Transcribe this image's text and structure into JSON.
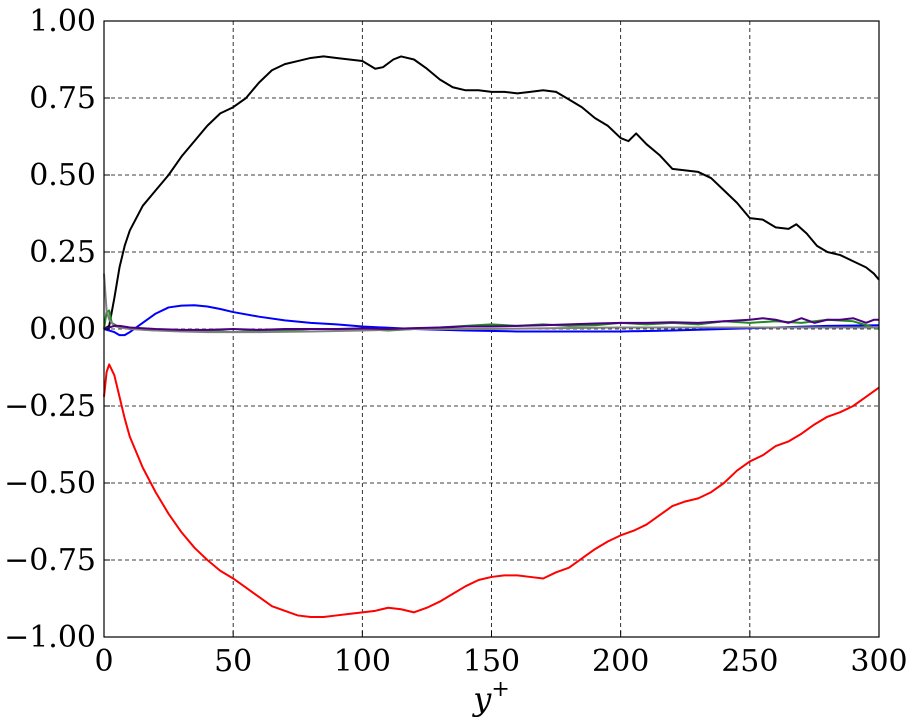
{
  "chart_data": {
    "type": "line",
    "title": "",
    "xlabel": "y",
    "xlabel_superscript": "+",
    "ylabel": "",
    "xlim": [
      0,
      300
    ],
    "ylim": [
      -1.0,
      1.0
    ],
    "grid": true,
    "grid_style": "dashed",
    "legend": "none",
    "x_ticks": [
      0,
      50,
      100,
      150,
      200,
      250,
      300
    ],
    "x_tick_labels": [
      "0",
      "50",
      "100",
      "150",
      "200",
      "250",
      "300"
    ],
    "y_ticks": [
      -1.0,
      -0.75,
      -0.5,
      -0.25,
      0.0,
      0.25,
      0.5,
      0.75,
      1.0
    ],
    "y_tick_labels": [
      "−1.00",
      "−0.75",
      "−0.50",
      "−0.25",
      "0.00",
      "0.25",
      "0.50",
      "0.75",
      "1.00"
    ],
    "series": [
      {
        "color": "#000000",
        "x": [
          0,
          2,
          4,
          6,
          8,
          10,
          15,
          20,
          25,
          30,
          35,
          40,
          45,
          50,
          55,
          60,
          65,
          70,
          75,
          80,
          85,
          90,
          95,
          100,
          105,
          108,
          112,
          115,
          120,
          125,
          130,
          135,
          140,
          145,
          150,
          155,
          160,
          165,
          170,
          175,
          180,
          185,
          190,
          195,
          200,
          203,
          206,
          210,
          215,
          220,
          225,
          230,
          235,
          240,
          245,
          250,
          255,
          260,
          265,
          268,
          272,
          276,
          280,
          285,
          290,
          295,
          298,
          300
        ],
        "y": [
          0.0,
          0.01,
          0.1,
          0.2,
          0.27,
          0.32,
          0.4,
          0.45,
          0.5,
          0.56,
          0.61,
          0.66,
          0.7,
          0.72,
          0.75,
          0.8,
          0.84,
          0.86,
          0.87,
          0.88,
          0.885,
          0.88,
          0.875,
          0.87,
          0.845,
          0.85,
          0.875,
          0.885,
          0.875,
          0.845,
          0.81,
          0.785,
          0.775,
          0.775,
          0.77,
          0.77,
          0.765,
          0.77,
          0.775,
          0.77,
          0.745,
          0.72,
          0.685,
          0.66,
          0.62,
          0.61,
          0.635,
          0.6,
          0.565,
          0.52,
          0.515,
          0.51,
          0.49,
          0.45,
          0.41,
          0.36,
          0.355,
          0.33,
          0.325,
          0.34,
          0.31,
          0.27,
          0.25,
          0.24,
          0.22,
          0.2,
          0.18,
          0.16
        ]
      },
      {
        "color": "#ff0000",
        "x": [
          0,
          1,
          2,
          4,
          6,
          8,
          10,
          15,
          20,
          25,
          30,
          35,
          40,
          45,
          50,
          55,
          60,
          65,
          70,
          75,
          80,
          85,
          90,
          95,
          100,
          105,
          110,
          115,
          120,
          125,
          130,
          135,
          140,
          145,
          150,
          155,
          160,
          165,
          170,
          175,
          180,
          185,
          190,
          195,
          200,
          205,
          210,
          215,
          220,
          225,
          230,
          235,
          240,
          245,
          250,
          255,
          260,
          265,
          270,
          275,
          280,
          285,
          290,
          295,
          300
        ],
        "y": [
          -0.22,
          -0.14,
          -0.115,
          -0.15,
          -0.22,
          -0.29,
          -0.35,
          -0.45,
          -0.53,
          -0.6,
          -0.66,
          -0.71,
          -0.75,
          -0.785,
          -0.81,
          -0.84,
          -0.87,
          -0.9,
          -0.915,
          -0.93,
          -0.935,
          -0.935,
          -0.93,
          -0.925,
          -0.92,
          -0.915,
          -0.905,
          -0.91,
          -0.92,
          -0.905,
          -0.885,
          -0.86,
          -0.835,
          -0.815,
          -0.805,
          -0.8,
          -0.8,
          -0.805,
          -0.81,
          -0.79,
          -0.775,
          -0.745,
          -0.715,
          -0.69,
          -0.67,
          -0.655,
          -0.635,
          -0.605,
          -0.575,
          -0.56,
          -0.55,
          -0.53,
          -0.5,
          -0.46,
          -0.43,
          -0.41,
          -0.38,
          -0.365,
          -0.34,
          -0.31,
          -0.285,
          -0.27,
          -0.25,
          -0.22,
          -0.19
        ]
      },
      {
        "color": "#0000ff",
        "x": [
          0,
          2,
          4,
          6,
          8,
          10,
          15,
          20,
          25,
          30,
          35,
          40,
          45,
          50,
          60,
          70,
          80,
          90,
          100,
          120,
          140,
          160,
          180,
          200,
          220,
          240,
          260,
          280,
          300
        ],
        "y": [
          0.0,
          -0.005,
          -0.01,
          -0.02,
          -0.02,
          -0.01,
          0.02,
          0.05,
          0.07,
          0.076,
          0.077,
          0.073,
          0.065,
          0.055,
          0.04,
          0.028,
          0.02,
          0.015,
          0.008,
          0.0,
          -0.005,
          -0.008,
          -0.008,
          -0.008,
          -0.005,
          0.0,
          0.005,
          0.01,
          0.012
        ]
      },
      {
        "color": "#228b22",
        "x": [
          0,
          1,
          2,
          3,
          5,
          8,
          12,
          20,
          30,
          40,
          50,
          60,
          70,
          80,
          90,
          100,
          110,
          120,
          130,
          140,
          150,
          160,
          170,
          180,
          190,
          200,
          210,
          220,
          230,
          240,
          250,
          260,
          270,
          280,
          290,
          300
        ],
        "y": [
          0.0,
          0.055,
          0.06,
          0.02,
          0.01,
          0.005,
          0.0,
          -0.005,
          -0.005,
          -0.005,
          -0.01,
          -0.005,
          -0.005,
          0.0,
          0.0,
          0.0,
          -0.005,
          0.0,
          0.005,
          0.01,
          0.015,
          0.01,
          0.015,
          0.01,
          0.012,
          0.02,
          0.015,
          0.02,
          0.015,
          0.025,
          0.02,
          0.025,
          0.02,
          0.03,
          0.025,
          0.0
        ]
      },
      {
        "color": "#808080",
        "x": [
          0,
          1,
          2,
          4,
          6,
          10,
          20,
          30,
          40,
          60,
          80,
          100,
          120,
          150,
          200,
          250,
          300
        ],
        "y": [
          0.18,
          0.06,
          0.03,
          0.01,
          0.005,
          0.0,
          -0.005,
          -0.008,
          -0.01,
          -0.01,
          -0.008,
          -0.005,
          0.0,
          0.0,
          0.005,
          0.005,
          0.005
        ]
      },
      {
        "color": "#4b0082",
        "x": [
          0,
          2,
          4,
          6,
          10,
          20,
          30,
          40,
          50,
          60,
          70,
          80,
          90,
          100,
          110,
          120,
          130,
          140,
          150,
          160,
          170,
          180,
          190,
          200,
          210,
          220,
          230,
          240,
          250,
          255,
          260,
          265,
          270,
          275,
          280,
          285,
          290,
          295,
          298,
          300
        ],
        "y": [
          0.0,
          0.005,
          0.01,
          0.01,
          0.005,
          0.0,
          -0.003,
          -0.003,
          0.0,
          -0.003,
          0.0,
          0.0,
          0.0,
          0.002,
          0.0,
          0.003,
          0.005,
          0.008,
          0.008,
          0.01,
          0.012,
          0.015,
          0.018,
          0.02,
          0.02,
          0.022,
          0.02,
          0.025,
          0.03,
          0.035,
          0.03,
          0.02,
          0.035,
          0.02,
          0.03,
          0.03,
          0.035,
          0.02,
          0.03,
          0.03
        ]
      }
    ]
  }
}
